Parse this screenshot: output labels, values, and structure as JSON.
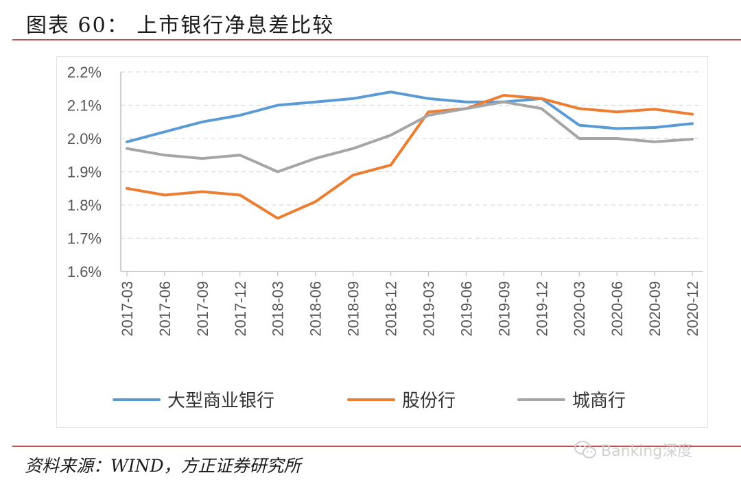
{
  "header": {
    "title": "图表 60：  上市银行净息差比较"
  },
  "footer": {
    "source": "资料来源：WIND，方正证券研究所",
    "watermark": "Banking深度"
  },
  "icons": {
    "watermark_icon": "wechat-icon"
  },
  "chart_data": {
    "type": "line",
    "title": "",
    "xlabel": "",
    "ylabel": "",
    "categories": [
      "2017-03",
      "2017-06",
      "2017-09",
      "2017-12",
      "2018-03",
      "2018-06",
      "2018-09",
      "2018-12",
      "2019-03",
      "2019-06",
      "2019-09",
      "2019-12",
      "2020-03",
      "2020-06",
      "2020-09",
      "2020-12"
    ],
    "ylim": [
      1.6,
      2.2
    ],
    "yticks": [
      "1.6%",
      "1.7%",
      "1.8%",
      "1.9%",
      "2.0%",
      "2.1%",
      "2.2%"
    ],
    "grid": "horizontal dashed",
    "legend_position": "bottom",
    "series": [
      {
        "name": "大型商业银行",
        "color": "#5b9bd5",
        "values": [
          1.99,
          2.02,
          2.05,
          2.07,
          2.1,
          2.11,
          2.12,
          2.14,
          2.12,
          2.11,
          2.11,
          2.12,
          2.04,
          2.03,
          2.033,
          2.045
        ]
      },
      {
        "name": "股份行",
        "color": "#ed7d31",
        "values": [
          1.85,
          1.83,
          1.84,
          1.83,
          1.76,
          1.81,
          1.89,
          1.92,
          2.08,
          2.09,
          2.13,
          2.12,
          2.09,
          2.08,
          2.088,
          2.073
        ]
      },
      {
        "name": "城商行",
        "color": "#a5a5a5",
        "values": [
          1.97,
          1.95,
          1.94,
          1.95,
          1.9,
          1.94,
          1.97,
          2.01,
          2.07,
          2.09,
          2.11,
          2.09,
          2.0,
          2.0,
          1.99,
          1.998
        ]
      }
    ]
  }
}
